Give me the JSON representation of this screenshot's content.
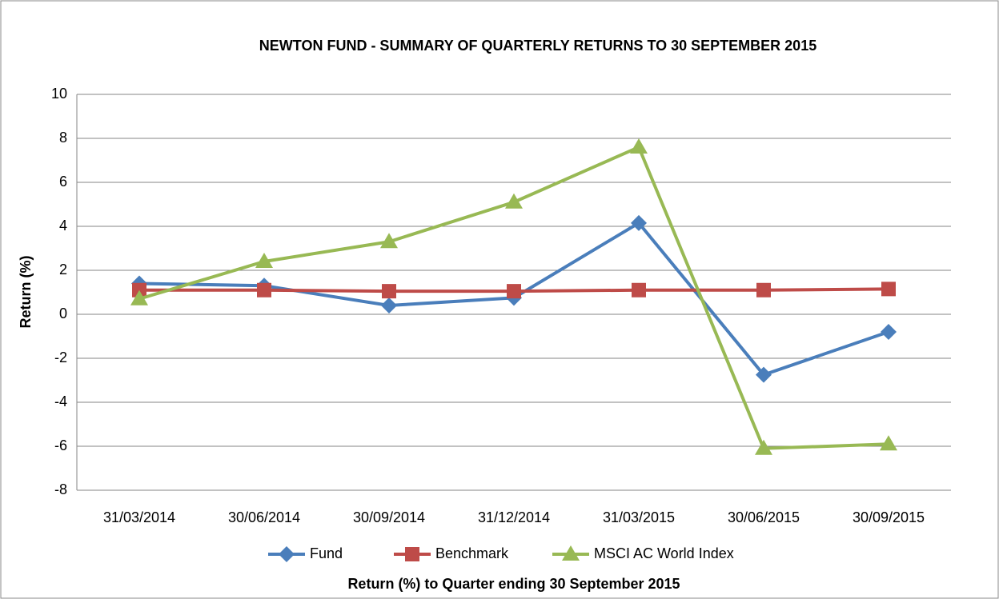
{
  "chart_data": {
    "type": "line",
    "title": "NEWTON FUND -  SUMMARY OF QUARTERLY RETURNS TO 30 SEPTEMBER 2015",
    "x_label": "Return (%) to Quarter ending 30 September 2015",
    "y_label": "Return (%)",
    "categories": [
      "31/03/2014",
      "30/06/2014",
      "30/09/2014",
      "31/12/2014",
      "31/03/2015",
      "30/06/2015",
      "30/09/2015"
    ],
    "series": [
      {
        "name": "Fund",
        "color": "#4a7ebb",
        "marker": "diamond",
        "values": [
          1.4,
          1.3,
          0.4,
          0.75,
          4.15,
          -2.75,
          -0.8
        ]
      },
      {
        "name": "Benchmark",
        "color": "#be4b48",
        "marker": "square",
        "values": [
          1.1,
          1.1,
          1.05,
          1.05,
          1.1,
          1.1,
          1.15
        ]
      },
      {
        "name": "MSCI AC World Index",
        "color": "#98b954",
        "marker": "triangle",
        "values": [
          0.7,
          2.4,
          3.3,
          5.1,
          7.6,
          -6.1,
          -5.9
        ]
      }
    ],
    "ylim": [
      -8,
      10
    ],
    "yticks": [
      -8,
      -6,
      -4,
      -2,
      0,
      2,
      4,
      6,
      8,
      10
    ],
    "grid": true,
    "legend": "bottom"
  }
}
